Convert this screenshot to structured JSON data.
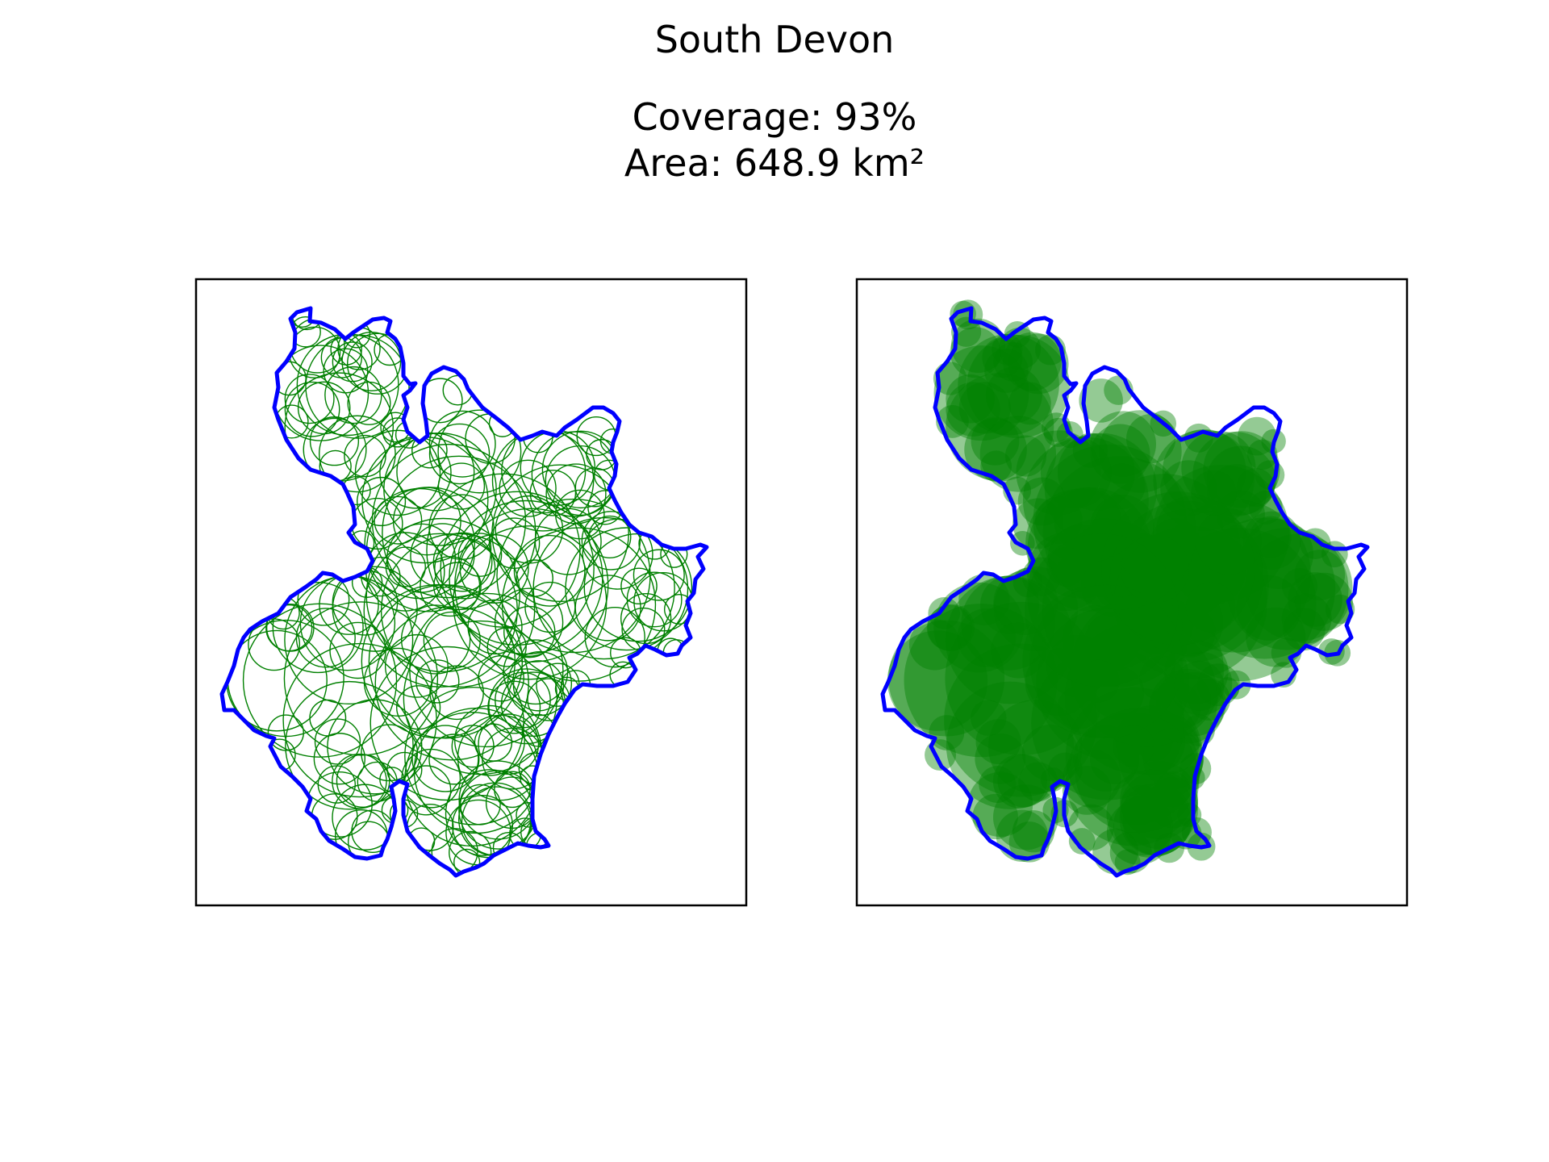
{
  "title": "South Devon",
  "subtitle": {
    "coverage": "Coverage: 93%",
    "area": "Area: 648.9 km²"
  },
  "colors": {
    "boundary": "#0000ff",
    "circles": "#008000",
    "frame": "#000000"
  },
  "panels": [
    {
      "name": "outline-panel",
      "style": "circle outlines"
    },
    {
      "name": "filled-panel",
      "style": "filled translucent circles"
    }
  ]
}
